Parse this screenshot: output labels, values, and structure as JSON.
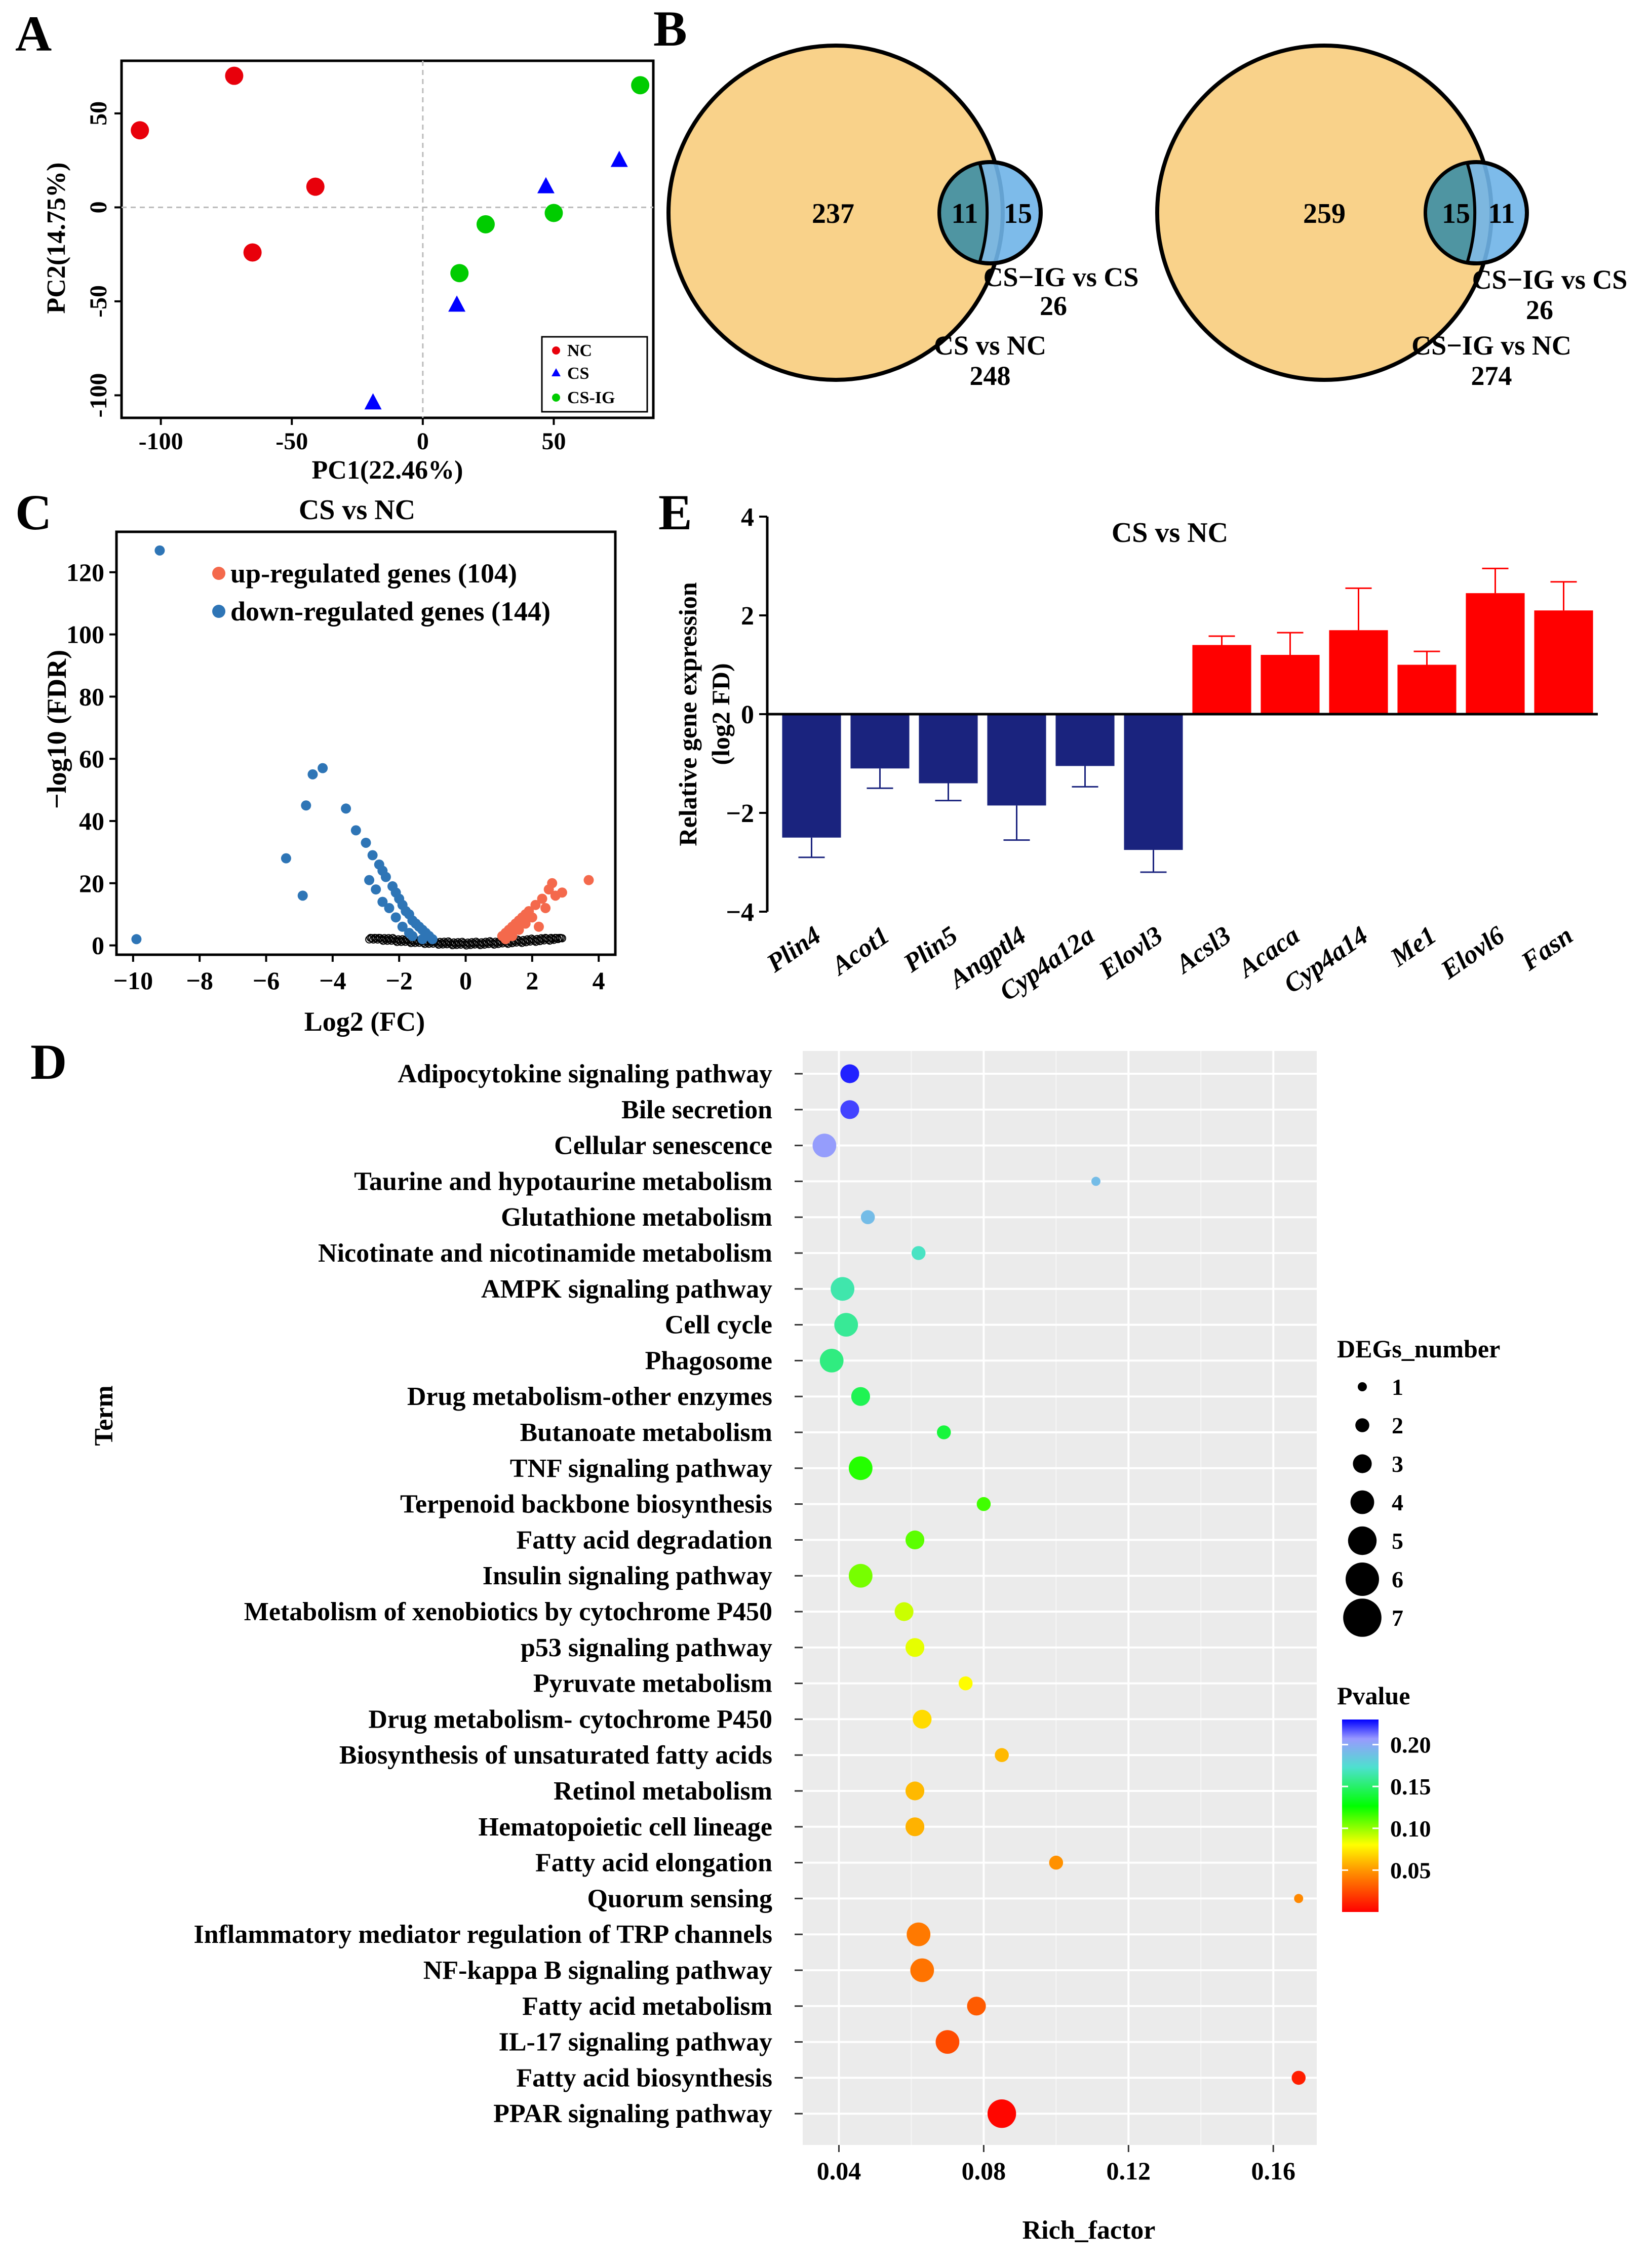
{
  "panel_labels": {
    "A": "A",
    "B": "B",
    "C": "C",
    "D": "D",
    "E": "E"
  },
  "chart_data": [
    {
      "id": "pca",
      "type": "scatter",
      "xlabel": "PC1(22.46%)",
      "ylabel": "PC2(14.75%)",
      "xlim": [
        -115,
        88
      ],
      "ylim": [
        -112,
        78
      ],
      "xticks": [
        -100,
        -50,
        0,
        50
      ],
      "yticks": [
        -100,
        -50,
        0,
        50
      ],
      "legend_position": "bottom-right",
      "series": [
        {
          "name": "NC",
          "marker": "circle",
          "color": "#e8000b",
          "points": [
            [
              -108,
              41
            ],
            [
              -72,
              70
            ],
            [
              -65,
              -24
            ],
            [
              -41,
              11
            ]
          ]
        },
        {
          "name": "CS",
          "marker": "triangle",
          "color": "#0000ff",
          "points": [
            [
              -19,
              -104
            ],
            [
              13,
              -52
            ],
            [
              47,
              11
            ],
            [
              75,
              25
            ]
          ]
        },
        {
          "name": "CS-IG",
          "marker": "circle",
          "color": "#00cc00",
          "points": [
            [
              24,
              -9
            ],
            [
              50,
              -3
            ],
            [
              14,
              -35
            ],
            [
              83,
              65
            ]
          ]
        }
      ]
    },
    {
      "id": "venn",
      "type": "venn",
      "diagrams": [
        {
          "big_only": "237",
          "overlap": "11",
          "small_only": "15",
          "small_name": "CS−IG vs CS",
          "small_total": "26",
          "big_name": "CS vs NC",
          "big_total": "248"
        },
        {
          "big_only": "259",
          "overlap": "15",
          "small_only": "11",
          "small_name": "CS−IG vs CS",
          "small_total": "26",
          "big_name": "CS−IG vs NC",
          "big_total": "274"
        }
      ],
      "big_color": "#f9d28a",
      "small_color": "#6fb4e8"
    },
    {
      "id": "volcano",
      "type": "scatter",
      "title": "CS vs NC",
      "xlabel": "Log2 (FC)",
      "ylabel": "−log10 (FDR)",
      "xlim": [
        -10.5,
        4.5
      ],
      "ylim": [
        -3,
        133
      ],
      "xticks": [
        -10,
        -8,
        -6,
        -4,
        -2,
        0,
        2,
        4
      ],
      "yticks": [
        0,
        20,
        40,
        60,
        80,
        100,
        120
      ],
      "legend": [
        "up-regulated genes (104)",
        "down-regulated genes (144)"
      ],
      "legend_colors": [
        "#f4694c",
        "#2e75b6"
      ],
      "down_points": [
        [
          -9.2,
          127
        ],
        [
          -9.9,
          2
        ],
        [
          -4.3,
          57
        ],
        [
          -4.6,
          55
        ],
        [
          -4.8,
          45
        ],
        [
          -5.4,
          28
        ],
        [
          -4.9,
          16
        ],
        [
          -3.6,
          44
        ],
        [
          -3.3,
          37
        ],
        [
          -3.0,
          33
        ],
        [
          -2.8,
          29
        ],
        [
          -2.6,
          26
        ],
        [
          -2.5,
          24
        ],
        [
          -2.4,
          22
        ],
        [
          -2.2,
          19
        ],
        [
          -2.1,
          17
        ],
        [
          -2.0,
          15
        ],
        [
          -1.9,
          13
        ],
        [
          -1.8,
          11
        ],
        [
          -1.7,
          10
        ],
        [
          -1.6,
          8
        ],
        [
          -1.5,
          7
        ],
        [
          -1.4,
          6
        ],
        [
          -1.3,
          5
        ],
        [
          -1.2,
          4
        ],
        [
          -1.1,
          3
        ],
        [
          -2.3,
          12
        ],
        [
          -2.7,
          18
        ],
        [
          -2.9,
          21
        ],
        [
          -1.9,
          6
        ],
        [
          -1.7,
          4
        ],
        [
          -2.1,
          9
        ],
        [
          -2.5,
          14
        ],
        [
          -1.6,
          3
        ],
        [
          -1.3,
          2
        ],
        [
          -1.0,
          2
        ]
      ],
      "up_points": [
        [
          3.7,
          21
        ],
        [
          2.6,
          20
        ],
        [
          2.5,
          18
        ],
        [
          2.3,
          15
        ],
        [
          2.1,
          13
        ],
        [
          1.9,
          11
        ],
        [
          1.8,
          10
        ],
        [
          1.7,
          9
        ],
        [
          1.6,
          8
        ],
        [
          1.5,
          7
        ],
        [
          1.4,
          6
        ],
        [
          1.3,
          5
        ],
        [
          1.2,
          4
        ],
        [
          1.1,
          3
        ],
        [
          2.7,
          16
        ],
        [
          2.4,
          12
        ],
        [
          2.0,
          9
        ],
        [
          1.8,
          7
        ],
        [
          1.6,
          5
        ],
        [
          1.4,
          3
        ],
        [
          1.2,
          2
        ],
        [
          2.2,
          6
        ],
        [
          2.9,
          17
        ]
      ],
      "ns_points_note": "non-significant genes near 0"
    },
    {
      "id": "qpcr",
      "type": "bar",
      "title": "CS vs NC",
      "ylabel_line1": "Relative gene expression",
      "ylabel_line2": "(log2 FD)",
      "ylim": [
        -4,
        4
      ],
      "yticks": [
        -4,
        -2,
        0,
        2,
        4
      ],
      "categories": [
        "Plin4",
        "Acot1",
        "Plin5",
        "Angptl4",
        "Cyp4a12a",
        "Elovl3",
        "Acsl3",
        "Acaca",
        "Cyp4a14",
        "Me1",
        "Elovl6",
        "Fasn"
      ],
      "values": [
        -2.5,
        -1.1,
        -1.4,
        -1.85,
        -1.05,
        -2.75,
        1.4,
        1.2,
        1.7,
        1.0,
        2.45,
        2.1
      ],
      "errors": [
        0.4,
        0.4,
        0.35,
        0.7,
        0.42,
        0.45,
        0.18,
        0.45,
        0.85,
        0.27,
        0.5,
        0.58
      ],
      "down_color": "#1a237e",
      "up_color": "#ff0000"
    },
    {
      "id": "kegg",
      "type": "scatter",
      "xlabel": "Rich_factor",
      "ylabel": "Term",
      "xlim": [
        0.03,
        0.172
      ],
      "xticks": [
        0.04,
        0.08,
        0.12,
        0.16
      ],
      "xtick_labels": [
        "0.04",
        "0.08",
        "0.12",
        "0.16"
      ],
      "size_legend_title": "DEGs_number",
      "size_legend": [
        "1",
        "2",
        "3",
        "4",
        "5",
        "6",
        "7"
      ],
      "color_legend_title": "Pvalue",
      "color_legend_ticks": [
        "0.20",
        "0.15",
        "0.10",
        "0.05"
      ],
      "color_legend_values": [
        0.2,
        0.15,
        0.1,
        0.05
      ],
      "pvalue_range": [
        0.0,
        0.23
      ],
      "terms": [
        {
          "term": "Adipocytokine signaling pathway",
          "rich": 0.043,
          "count": 3,
          "p": 0.225
        },
        {
          "term": "Bile secretion",
          "rich": 0.043,
          "count": 3,
          "p": 0.22
        },
        {
          "term": "Cellular senescence",
          "rich": 0.036,
          "count": 4,
          "p": 0.205
        },
        {
          "term": "Taurine and hypotaurine metabolism",
          "rich": 0.111,
          "count": 1,
          "p": 0.19
        },
        {
          "term": "Glutathione metabolism",
          "rich": 0.048,
          "count": 2,
          "p": 0.19
        },
        {
          "term": "Nicotinate and nicotinamide metabolism",
          "rich": 0.062,
          "count": 2,
          "p": 0.17
        },
        {
          "term": "AMPK signaling pathway",
          "rich": 0.041,
          "count": 4,
          "p": 0.165
        },
        {
          "term": "Cell cycle",
          "rich": 0.042,
          "count": 4,
          "p": 0.16
        },
        {
          "term": "Phagosome",
          "rich": 0.038,
          "count": 4,
          "p": 0.155
        },
        {
          "term": "Drug metabolism-other enzymes",
          "rich": 0.046,
          "count": 3,
          "p": 0.145
        },
        {
          "term": "Butanoate metabolism",
          "rich": 0.069,
          "count": 2,
          "p": 0.14
        },
        {
          "term": "TNF signaling pathway",
          "rich": 0.046,
          "count": 4,
          "p": 0.12
        },
        {
          "term": "Terpenoid backbone biosynthesis",
          "rich": 0.08,
          "count": 2,
          "p": 0.115
        },
        {
          "term": "Fatty acid degradation",
          "rich": 0.061,
          "count": 3,
          "p": 0.11
        },
        {
          "term": "Insulin signaling pathway",
          "rich": 0.046,
          "count": 4,
          "p": 0.105
        },
        {
          "term": "Metabolism of xenobiotics by cytochrome P450",
          "rich": 0.058,
          "count": 3,
          "p": 0.09
        },
        {
          "term": "p53 signaling pathway",
          "rich": 0.061,
          "count": 3,
          "p": 0.085
        },
        {
          "term": "Pyruvate metabolism",
          "rich": 0.075,
          "count": 2,
          "p": 0.08
        },
        {
          "term": "Drug metabolism- cytochrome P450 ",
          "rich": 0.063,
          "count": 3,
          "p": 0.07
        },
        {
          "term": "Biosynthesis of unsaturated fatty acids",
          "rich": 0.085,
          "count": 2,
          "p": 0.06
        },
        {
          "term": "Retinol metabolism",
          "rich": 0.061,
          "count": 3,
          "p": 0.06
        },
        {
          "term": "Hematopoietic cell lineage",
          "rich": 0.061,
          "count": 3,
          "p": 0.058
        },
        {
          "term": "Fatty acid elongation",
          "rich": 0.1,
          "count": 2,
          "p": 0.048
        },
        {
          "term": "Quorum sensing",
          "rich": 0.167,
          "count": 1,
          "p": 0.045
        },
        {
          "term": "Inflammatory mediator regulation of TRP channels",
          "rich": 0.062,
          "count": 4,
          "p": 0.04
        },
        {
          "term": "NF-kappa B signaling pathway",
          "rich": 0.063,
          "count": 4,
          "p": 0.038
        },
        {
          "term": "Fatty acid metabolism",
          "rich": 0.078,
          "count": 3,
          "p": 0.03
        },
        {
          "term": "IL-17 signaling pathway",
          "rich": 0.07,
          "count": 4,
          "p": 0.025
        },
        {
          "term": "Fatty acid biosynthesis",
          "rich": 0.167,
          "count": 2,
          "p": 0.01
        },
        {
          "term": "PPAR signaling pathway",
          "rich": 0.085,
          "count": 5,
          "p": 0.002
        }
      ]
    }
  ]
}
